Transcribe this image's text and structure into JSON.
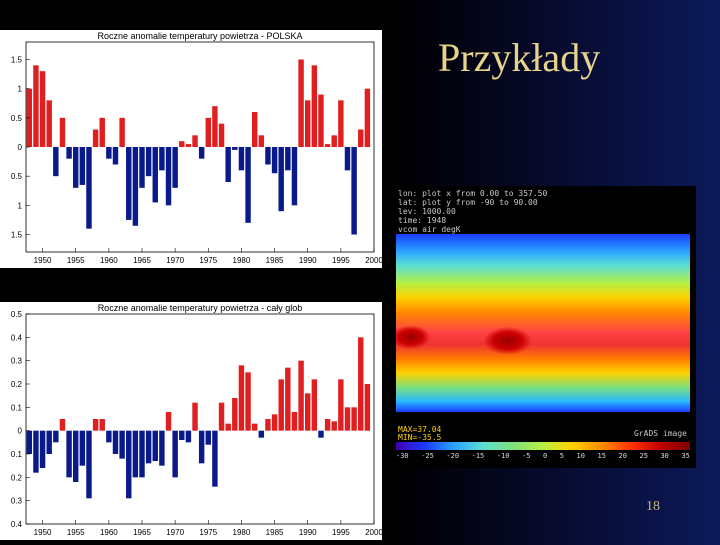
{
  "slide": {
    "title": "Przykłady",
    "page": "18"
  },
  "grads": {
    "header": [
      "lon: plot x from 0.00 to 357.50",
      "lat: plot y from -90 to 90.00",
      "lev: 1000.00",
      "time: 1948",
      "vcom air degK"
    ],
    "stats": [
      "MAX=37.04",
      "MIN=-35.5"
    ],
    "label": "GrADS image",
    "colorbar_ticks": [
      "-30",
      "-25",
      "-20",
      "-15",
      "-10",
      "-5",
      "0",
      "5",
      "10",
      "15",
      "20",
      "25",
      "30",
      "35"
    ]
  },
  "chart_data": [
    {
      "type": "bar",
      "title": "Roczne anomalie temperatury powietrza - POLSKA",
      "x": [
        1948,
        1949,
        1950,
        1951,
        1952,
        1953,
        1954,
        1955,
        1956,
        1957,
        1958,
        1959,
        1960,
        1961,
        1962,
        1963,
        1964,
        1965,
        1966,
        1967,
        1968,
        1969,
        1970,
        1971,
        1972,
        1973,
        1974,
        1975,
        1976,
        1977,
        1978,
        1979,
        1980,
        1981,
        1982,
        1983,
        1984,
        1985,
        1986,
        1987,
        1988,
        1989,
        1990,
        1991,
        1992,
        1993,
        1994,
        1995,
        1996,
        1997,
        1998,
        1999
      ],
      "values": [
        1.0,
        1.4,
        1.3,
        0.8,
        -0.5,
        0.5,
        -0.2,
        -0.7,
        -0.65,
        -1.4,
        0.3,
        0.5,
        -0.2,
        -0.3,
        0.5,
        -1.25,
        -1.35,
        -0.7,
        -0.5,
        -0.95,
        -0.4,
        -1.0,
        -0.7,
        0.1,
        0.05,
        0.2,
        -0.2,
        0.5,
        0.7,
        0.4,
        -0.6,
        -0.05,
        -0.4,
        -1.3,
        0.6,
        0.2,
        -0.3,
        -0.45,
        -1.1,
        -0.4,
        -1.0,
        1.5,
        0.8,
        1.4,
        0.9,
        0.05,
        0.2,
        0.8,
        -0.4,
        -1.5,
        0.3,
        1.0
      ],
      "colors": {
        "positive": "#e02020",
        "negative": "#0a1a8a"
      },
      "ylim": [
        -1.8,
        1.8
      ],
      "yticks": [
        -1.5,
        -1,
        -0.5,
        0,
        0.5,
        1,
        1.5
      ],
      "ytick_labels": [
        "1.5",
        "1",
        "0.5",
        "0",
        "0.5",
        "1",
        "1.5"
      ],
      "xticks": [
        1950,
        1955,
        1960,
        1965,
        1970,
        1975,
        1980,
        1985,
        1990,
        1995,
        2000
      ],
      "grid": false
    },
    {
      "type": "bar",
      "title": "Roczne anomalie temperatury powietrza - cały glob",
      "x": [
        1948,
        1949,
        1950,
        1951,
        1952,
        1953,
        1954,
        1955,
        1956,
        1957,
        1958,
        1959,
        1960,
        1961,
        1962,
        1963,
        1964,
        1965,
        1966,
        1967,
        1968,
        1969,
        1970,
        1971,
        1972,
        1973,
        1974,
        1975,
        1976,
        1977,
        1978,
        1979,
        1980,
        1981,
        1982,
        1983,
        1984,
        1985,
        1986,
        1987,
        1988,
        1989,
        1990,
        1991,
        1992,
        1993,
        1994,
        1995,
        1996,
        1997,
        1998,
        1999
      ],
      "values": [
        -0.1,
        -0.18,
        -0.16,
        -0.1,
        -0.05,
        0.05,
        -0.2,
        -0.22,
        -0.15,
        -0.29,
        0.05,
        0.05,
        -0.05,
        -0.1,
        -0.12,
        -0.29,
        -0.2,
        -0.2,
        -0.14,
        -0.13,
        -0.15,
        0.08,
        -0.2,
        -0.04,
        -0.05,
        0.12,
        -0.14,
        -0.06,
        -0.24,
        0.12,
        0.03,
        0.14,
        0.28,
        0.25,
        0.03,
        -0.03,
        0.05,
        0.07,
        0.22,
        0.27,
        0.08,
        0.3,
        0.16,
        0.22,
        -0.03,
        0.05,
        0.04,
        0.22,
        0.1,
        0.1,
        0.4,
        0.2
      ],
      "colors": {
        "positive": "#e02020",
        "negative": "#0a1a8a"
      },
      "ylim": [
        -0.4,
        0.5
      ],
      "yticks": [
        -0.4,
        -0.3,
        -0.2,
        -0.1,
        0,
        0.1,
        0.2,
        0.3,
        0.4,
        0.5
      ],
      "ytick_labels": [
        "0.4",
        "0.3",
        "0.2",
        "0.1",
        "0",
        "0.1",
        "0.2",
        "0.3",
        "0.4",
        "0.5"
      ],
      "xticks": [
        1950,
        1955,
        1960,
        1965,
        1970,
        1975,
        1980,
        1985,
        1990,
        1995,
        2000
      ],
      "grid": false
    }
  ]
}
